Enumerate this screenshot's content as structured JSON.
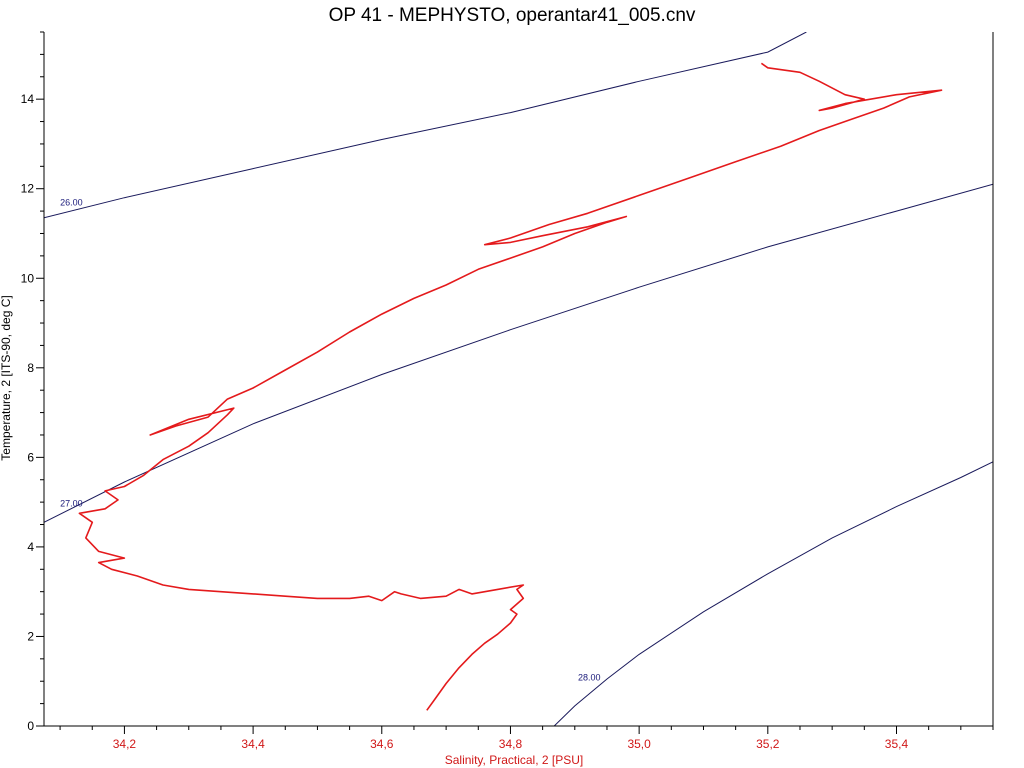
{
  "title": "OP 41 - MEPHYSTO, operantar41_005.cnv",
  "colors": {
    "profile": "#e41a1c",
    "isopycnal": "#1a1a5c",
    "isopycnal_label": "#1a1a7a",
    "x_axis_text": "#d01818",
    "axis": "#000000"
  },
  "chart_data": {
    "type": "line",
    "title": "OP 41 - MEPHYSTO, operantar41_005.cnv",
    "xlabel": "Salinity, Practical, 2 [PSU]",
    "ylabel": "Temperature, 2 [ITS-90, deg C]",
    "xlim": [
      34.075,
      35.55
    ],
    "ylim": [
      0,
      15.5
    ],
    "x_ticks": [
      "34,2",
      "34,4",
      "34,6",
      "34,8",
      "35,0",
      "35,2",
      "35,4"
    ],
    "x_tick_values": [
      34.2,
      34.4,
      34.6,
      34.8,
      35.0,
      35.2,
      35.4
    ],
    "x_minor_step": 0.05,
    "y_ticks": [
      "0",
      "2",
      "4",
      "6",
      "8",
      "10",
      "12",
      "14"
    ],
    "y_tick_values": [
      0,
      2,
      4,
      6,
      8,
      10,
      12,
      14
    ],
    "y_minor_step": 0.5,
    "grid": false,
    "isopycnals": [
      {
        "label": "26.00",
        "points": [
          [
            34.075,
            11.35
          ],
          [
            34.2,
            11.8
          ],
          [
            34.4,
            12.45
          ],
          [
            34.6,
            13.1
          ],
          [
            34.8,
            13.7
          ],
          [
            35.0,
            14.4
          ],
          [
            35.2,
            15.05
          ],
          [
            35.26,
            15.5
          ]
        ]
      },
      {
        "label": "27.00",
        "points": [
          [
            34.075,
            4.55
          ],
          [
            34.2,
            5.45
          ],
          [
            34.4,
            6.75
          ],
          [
            34.6,
            7.85
          ],
          [
            34.8,
            8.85
          ],
          [
            35.0,
            9.8
          ],
          [
            35.2,
            10.7
          ],
          [
            35.4,
            11.5
          ],
          [
            35.55,
            12.1
          ]
        ]
      },
      {
        "label": "28.00",
        "points": [
          [
            34.868,
            0
          ],
          [
            34.9,
            0.45
          ],
          [
            34.95,
            1.05
          ],
          [
            35.0,
            1.6
          ],
          [
            35.1,
            2.55
          ],
          [
            35.2,
            3.4
          ],
          [
            35.3,
            4.2
          ],
          [
            35.4,
            4.9
          ],
          [
            35.5,
            5.55
          ],
          [
            35.55,
            5.9
          ]
        ]
      }
    ],
    "series": [
      {
        "points": [
          [
            34.67,
            0.35
          ],
          [
            34.68,
            0.55
          ],
          [
            34.7,
            0.95
          ],
          [
            34.72,
            1.3
          ],
          [
            34.74,
            1.6
          ],
          [
            34.76,
            1.85
          ],
          [
            34.78,
            2.05
          ],
          [
            34.8,
            2.3
          ],
          [
            34.81,
            2.5
          ],
          [
            34.8,
            2.6
          ],
          [
            34.82,
            2.85
          ],
          [
            34.81,
            3.05
          ],
          [
            34.82,
            3.15
          ],
          [
            34.78,
            3.05
          ],
          [
            34.74,
            2.95
          ],
          [
            34.72,
            3.05
          ],
          [
            34.7,
            2.9
          ],
          [
            34.66,
            2.85
          ],
          [
            34.63,
            2.95
          ],
          [
            34.62,
            3.0
          ],
          [
            34.6,
            2.8
          ],
          [
            34.58,
            2.9
          ],
          [
            34.55,
            2.85
          ],
          [
            34.5,
            2.85
          ],
          [
            34.45,
            2.9
          ],
          [
            34.4,
            2.95
          ],
          [
            34.35,
            3.0
          ],
          [
            34.3,
            3.05
          ],
          [
            34.26,
            3.15
          ],
          [
            34.22,
            3.35
          ],
          [
            34.18,
            3.5
          ],
          [
            34.16,
            3.65
          ],
          [
            34.2,
            3.75
          ],
          [
            34.16,
            3.9
          ],
          [
            34.14,
            4.2
          ],
          [
            34.15,
            4.55
          ],
          [
            34.13,
            4.75
          ],
          [
            34.17,
            4.85
          ],
          [
            34.19,
            5.05
          ],
          [
            34.17,
            5.25
          ],
          [
            34.2,
            5.35
          ],
          [
            34.23,
            5.6
          ],
          [
            34.26,
            5.95
          ],
          [
            34.3,
            6.25
          ],
          [
            34.33,
            6.55
          ],
          [
            34.36,
            6.95
          ],
          [
            34.37,
            7.1
          ],
          [
            34.3,
            6.85
          ],
          [
            34.24,
            6.5
          ],
          [
            34.28,
            6.7
          ],
          [
            34.33,
            6.9
          ],
          [
            34.36,
            7.3
          ],
          [
            34.4,
            7.55
          ],
          [
            34.45,
            7.95
          ],
          [
            34.5,
            8.35
          ],
          [
            34.55,
            8.8
          ],
          [
            34.6,
            9.2
          ],
          [
            34.65,
            9.55
          ],
          [
            34.7,
            9.85
          ],
          [
            34.75,
            10.2
          ],
          [
            34.8,
            10.45
          ],
          [
            34.85,
            10.7
          ],
          [
            34.9,
            11.0
          ],
          [
            34.95,
            11.25
          ],
          [
            34.98,
            11.38
          ],
          [
            34.92,
            11.15
          ],
          [
            34.85,
            10.95
          ],
          [
            34.8,
            10.8
          ],
          [
            34.76,
            10.75
          ],
          [
            34.8,
            10.9
          ],
          [
            34.86,
            11.2
          ],
          [
            34.92,
            11.45
          ],
          [
            35.0,
            11.85
          ],
          [
            35.08,
            12.25
          ],
          [
            35.15,
            12.6
          ],
          [
            35.22,
            12.95
          ],
          [
            35.28,
            13.3
          ],
          [
            35.33,
            13.55
          ],
          [
            35.38,
            13.8
          ],
          [
            35.42,
            14.05
          ],
          [
            35.47,
            14.2
          ],
          [
            35.4,
            14.1
          ],
          [
            35.32,
            13.9
          ],
          [
            35.28,
            13.75
          ],
          [
            35.3,
            13.8
          ],
          [
            35.35,
            14.0
          ],
          [
            35.32,
            14.1
          ],
          [
            35.28,
            14.4
          ],
          [
            35.25,
            14.6
          ],
          [
            35.2,
            14.7
          ],
          [
            35.19,
            14.8
          ]
        ]
      }
    ]
  }
}
